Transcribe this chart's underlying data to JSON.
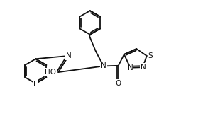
{
  "bg": "#ffffff",
  "lc": "#111111",
  "lw": 1.3,
  "fs": 7.5,
  "fw": 2.86,
  "fh": 1.81,
  "dpi": 100,
  "xlim": [
    0.0,
    9.5
  ],
  "ylim": [
    0.3,
    6.5
  ]
}
